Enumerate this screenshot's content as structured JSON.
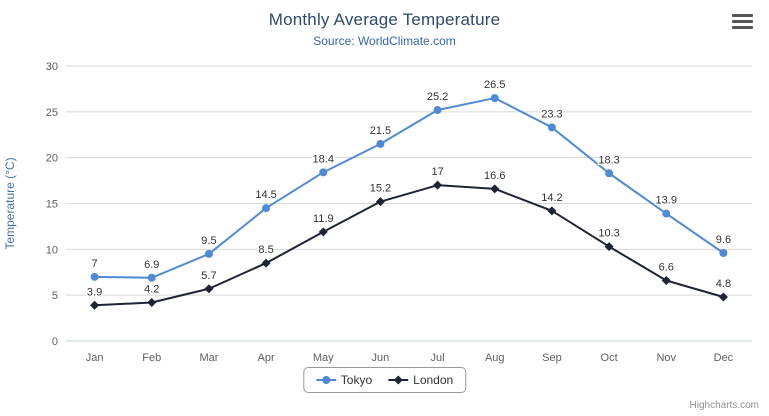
{
  "chart_data": {
    "type": "line",
    "title": "Monthly Average Temperature",
    "subtitle": "Source: WorldClimate.com",
    "ylabel": "Temperature (°C)",
    "xlabel": "",
    "ylim": [
      0,
      30
    ],
    "tick_interval": 5,
    "grid": true,
    "legend_position": "bottom-center",
    "categories": [
      "Jan",
      "Feb",
      "Mar",
      "Apr",
      "May",
      "Jun",
      "Jul",
      "Aug",
      "Sep",
      "Oct",
      "Nov",
      "Dec"
    ],
    "series": [
      {
        "name": "Tokyo",
        "color": "#4f8bd4",
        "marker": "circle",
        "values": [
          7,
          6.9,
          9.5,
          14.5,
          18.4,
          21.5,
          25.2,
          26.5,
          23.3,
          18.3,
          13.9,
          9.6
        ]
      },
      {
        "name": "London",
        "color": "#1e2433",
        "marker": "diamond",
        "values": [
          3.9,
          4.2,
          5.7,
          8.5,
          11.9,
          15.2,
          17,
          16.6,
          14.2,
          10.3,
          6.6,
          4.8
        ]
      }
    ],
    "credits": "Highcharts.com"
  },
  "icons": {
    "export_menu": "hamburger-icon"
  },
  "theme_colors": {
    "grid_line": "#d8d8d8",
    "axis_line": "#c0d0e0",
    "axis_label": "#606060",
    "yaxis_title": "#4572a7",
    "title": "#2c4a6e",
    "subtitle": "#3366aa"
  }
}
